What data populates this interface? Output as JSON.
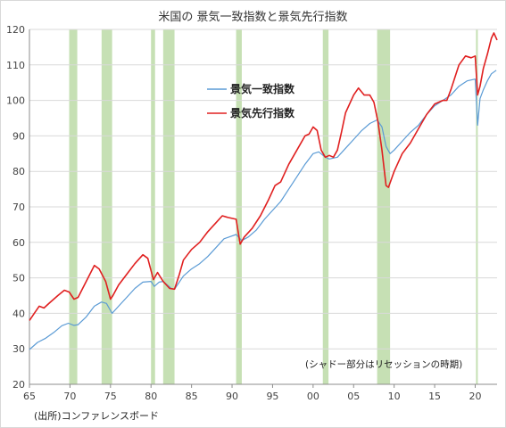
{
  "chart_data": {
    "type": "line",
    "title": "米国の 景気一致指数と景気先行指数",
    "xlabel": "",
    "ylabel": "",
    "xlim": [
      1965,
      2022.7
    ],
    "ylim": [
      20,
      120
    ],
    "y_ticks": [
      20,
      30,
      40,
      50,
      60,
      70,
      80,
      90,
      100,
      110,
      120
    ],
    "x_ticks": [
      1965,
      1970,
      1975,
      1980,
      1985,
      1990,
      1995,
      2000,
      2005,
      2010,
      2015,
      2020
    ],
    "x_tick_labels": [
      "65",
      "70",
      "75",
      "80",
      "85",
      "90",
      "95",
      "00",
      "05",
      "10",
      "15",
      "20"
    ],
    "grid": "horizontal",
    "legend": {
      "placement": "upper-middle"
    },
    "annotation": "(シャドー部分はリセッションの時期)",
    "source": "(出所)コンファレンスボード",
    "recessions": [
      [
        1969.9,
        1970.9
      ],
      [
        1973.9,
        1975.2
      ],
      [
        1980.0,
        1980.5
      ],
      [
        1981.5,
        1982.9
      ],
      [
        1990.5,
        1991.2
      ],
      [
        2001.2,
        2001.9
      ],
      [
        2007.9,
        2009.5
      ],
      [
        2020.1,
        2020.3
      ]
    ],
    "series": [
      {
        "name": "景気一致指数",
        "color": "#5b9bd5",
        "points": [
          [
            1965.0,
            29.8
          ],
          [
            1966.0,
            31.8
          ],
          [
            1967.0,
            33.0
          ],
          [
            1968.0,
            34.6
          ],
          [
            1969.0,
            36.5
          ],
          [
            1969.8,
            37.2
          ],
          [
            1970.5,
            36.6
          ],
          [
            1971.0,
            36.8
          ],
          [
            1972.0,
            39.0
          ],
          [
            1973.0,
            42.0
          ],
          [
            1973.9,
            43.2
          ],
          [
            1974.5,
            42.8
          ],
          [
            1975.2,
            40.0
          ],
          [
            1976.0,
            42.0
          ],
          [
            1977.0,
            44.5
          ],
          [
            1978.0,
            47.0
          ],
          [
            1979.0,
            48.8
          ],
          [
            1980.0,
            49.0
          ],
          [
            1980.4,
            47.6
          ],
          [
            1981.0,
            48.8
          ],
          [
            1981.5,
            49.0
          ],
          [
            1982.5,
            47.0
          ],
          [
            1982.9,
            46.8
          ],
          [
            1984.0,
            50.5
          ],
          [
            1985.0,
            52.5
          ],
          [
            1986.0,
            54.0
          ],
          [
            1987.0,
            56.0
          ],
          [
            1988.0,
            58.5
          ],
          [
            1989.0,
            61.0
          ],
          [
            1990.5,
            62.2
          ],
          [
            1991.2,
            60.5
          ],
          [
            1992.0,
            61.5
          ],
          [
            1993.0,
            63.5
          ],
          [
            1994.0,
            66.5
          ],
          [
            1995.0,
            69.0
          ],
          [
            1996.0,
            71.5
          ],
          [
            1997.0,
            75.0
          ],
          [
            1998.0,
            78.5
          ],
          [
            1999.0,
            82.0
          ],
          [
            2000.0,
            85.0
          ],
          [
            2000.7,
            85.5
          ],
          [
            2001.5,
            84.0
          ],
          [
            2002.0,
            83.5
          ],
          [
            2003.0,
            84.0
          ],
          [
            2004.0,
            86.5
          ],
          [
            2005.0,
            89.0
          ],
          [
            2006.0,
            91.5
          ],
          [
            2007.0,
            93.5
          ],
          [
            2007.9,
            94.5
          ],
          [
            2008.5,
            92.5
          ],
          [
            2009.0,
            87.0
          ],
          [
            2009.5,
            85.0
          ],
          [
            2010.0,
            86.0
          ],
          [
            2011.0,
            88.5
          ],
          [
            2012.0,
            91.0
          ],
          [
            2013.0,
            93.0
          ],
          [
            2014.0,
            96.0
          ],
          [
            2015.0,
            98.5
          ],
          [
            2016.0,
            100.0
          ],
          [
            2017.0,
            101.5
          ],
          [
            2018.0,
            104.0
          ],
          [
            2019.0,
            105.5
          ],
          [
            2020.0,
            106.0
          ],
          [
            2020.3,
            93.0
          ],
          [
            2020.6,
            100.5
          ],
          [
            2021.0,
            103.0
          ],
          [
            2021.5,
            105.5
          ],
          [
            2022.0,
            107.5
          ],
          [
            2022.6,
            108.5
          ]
        ]
      },
      {
        "name": "景気先行指数",
        "color": "#e02020",
        "points": [
          [
            1965.0,
            38.0
          ],
          [
            1965.6,
            40.0
          ],
          [
            1966.2,
            42.0
          ],
          [
            1966.8,
            41.5
          ],
          [
            1967.5,
            43.0
          ],
          [
            1968.5,
            45.0
          ],
          [
            1969.3,
            46.5
          ],
          [
            1969.9,
            46.0
          ],
          [
            1970.5,
            44.0
          ],
          [
            1971.0,
            44.5
          ],
          [
            1972.0,
            49.0
          ],
          [
            1973.0,
            53.5
          ],
          [
            1973.6,
            52.5
          ],
          [
            1974.4,
            49.0
          ],
          [
            1975.0,
            44.0
          ],
          [
            1975.3,
            45.0
          ],
          [
            1976.0,
            48.0
          ],
          [
            1977.0,
            51.0
          ],
          [
            1978.0,
            54.0
          ],
          [
            1979.0,
            56.5
          ],
          [
            1979.6,
            55.5
          ],
          [
            1980.3,
            49.5
          ],
          [
            1980.8,
            51.5
          ],
          [
            1981.5,
            49.0
          ],
          [
            1982.3,
            47.0
          ],
          [
            1982.9,
            46.8
          ],
          [
            1983.5,
            51.0
          ],
          [
            1984.0,
            55.0
          ],
          [
            1985.0,
            58.0
          ],
          [
            1986.0,
            60.0
          ],
          [
            1987.0,
            63.0
          ],
          [
            1988.0,
            65.5
          ],
          [
            1988.8,
            67.5
          ],
          [
            1989.5,
            67.0
          ],
          [
            1990.5,
            66.5
          ],
          [
            1991.0,
            59.5
          ],
          [
            1991.5,
            61.5
          ],
          [
            1992.5,
            64.0
          ],
          [
            1993.5,
            67.5
          ],
          [
            1994.5,
            72.0
          ],
          [
            1995.3,
            76.0
          ],
          [
            1996.0,
            77.0
          ],
          [
            1997.0,
            82.0
          ],
          [
            1998.0,
            86.0
          ],
          [
            1999.0,
            90.0
          ],
          [
            1999.5,
            90.5
          ],
          [
            2000.0,
            92.5
          ],
          [
            2000.5,
            91.5
          ],
          [
            2001.0,
            86.0
          ],
          [
            2001.5,
            84.0
          ],
          [
            2002.0,
            84.5
          ],
          [
            2002.5,
            84.0
          ],
          [
            2003.0,
            86.0
          ],
          [
            2003.5,
            91.0
          ],
          [
            2004.0,
            96.5
          ],
          [
            2005.0,
            101.5
          ],
          [
            2005.6,
            103.5
          ],
          [
            2006.3,
            101.5
          ],
          [
            2007.0,
            101.5
          ],
          [
            2007.5,
            99.5
          ],
          [
            2008.0,
            94.0
          ],
          [
            2008.5,
            86.0
          ],
          [
            2009.0,
            76.0
          ],
          [
            2009.3,
            75.5
          ],
          [
            2010.0,
            80.0
          ],
          [
            2011.0,
            85.0
          ],
          [
            2012.0,
            88.0
          ],
          [
            2013.0,
            92.0
          ],
          [
            2014.0,
            96.0
          ],
          [
            2015.0,
            99.0
          ],
          [
            2016.0,
            100.0
          ],
          [
            2016.5,
            100.0
          ],
          [
            2017.0,
            103.0
          ],
          [
            2018.0,
            110.0
          ],
          [
            2018.8,
            112.5
          ],
          [
            2019.5,
            112.0
          ],
          [
            2020.0,
            112.5
          ],
          [
            2020.3,
            101.5
          ],
          [
            2020.6,
            104.0
          ],
          [
            2021.0,
            109.0
          ],
          [
            2021.5,
            113.0
          ],
          [
            2022.0,
            117.5
          ],
          [
            2022.3,
            119.0
          ],
          [
            2022.7,
            117.0
          ]
        ]
      }
    ]
  }
}
